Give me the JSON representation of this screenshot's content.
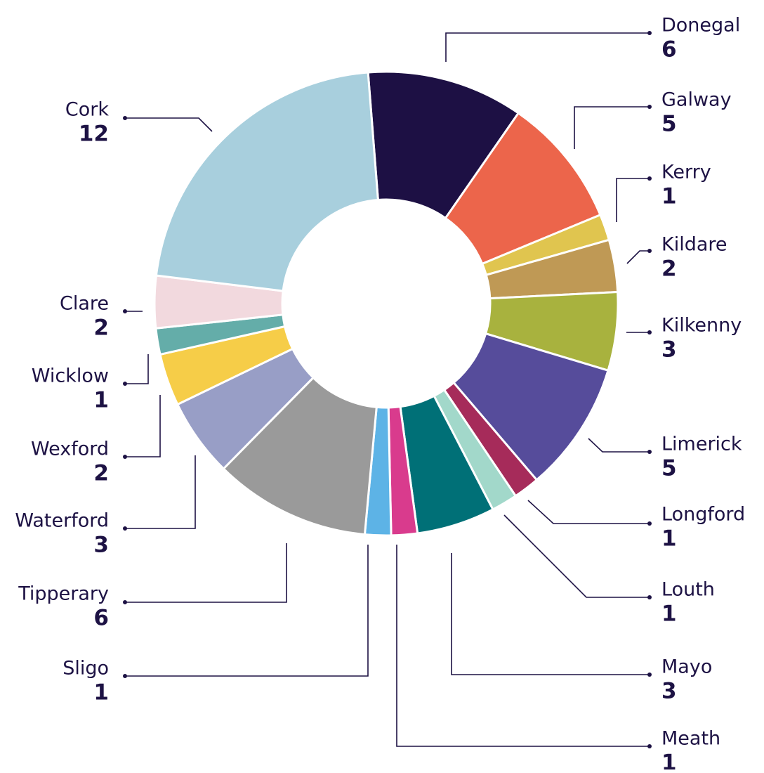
{
  "chart_data": {
    "type": "pie",
    "variant": "donut",
    "title": "",
    "legend": "none",
    "slices": [
      {
        "label": "Donegal",
        "value": 6,
        "color": "#1d1044"
      },
      {
        "label": "Galway",
        "value": 5,
        "color": "#ec654b"
      },
      {
        "label": "Kerry",
        "value": 1,
        "color": "#e0c54f"
      },
      {
        "label": "Kildare",
        "value": 2,
        "color": "#bf9955"
      },
      {
        "label": "Kilkenny",
        "value": 3,
        "color": "#a8b23e"
      },
      {
        "label": "Limerick",
        "value": 5,
        "color": "#564c9b"
      },
      {
        "label": "Longford",
        "value": 1,
        "color": "#a62b5a"
      },
      {
        "label": "Louth",
        "value": 1,
        "color": "#a2d8ca"
      },
      {
        "label": "Mayo",
        "value": 3,
        "color": "#007077"
      },
      {
        "label": "Meath",
        "value": 1,
        "color": "#d93b8d"
      },
      {
        "label": "Sligo",
        "value": 1,
        "color": "#5db3e6"
      },
      {
        "label": "Tipperary",
        "value": 6,
        "color": "#9a9a9a"
      },
      {
        "label": "Waterford",
        "value": 3,
        "color": "#989ec6"
      },
      {
        "label": "Wexford",
        "value": 2,
        "color": "#f6cd48"
      },
      {
        "label": "Wicklow",
        "value": 1,
        "color": "#64ada9"
      },
      {
        "label": "Clare",
        "value": 2,
        "color": "#f2d9de"
      },
      {
        "label": "Cork",
        "value": 12,
        "color": "#a8cfdd"
      }
    ]
  },
  "colors": {
    "text": "#1d1244",
    "leader": "#1d1244"
  }
}
